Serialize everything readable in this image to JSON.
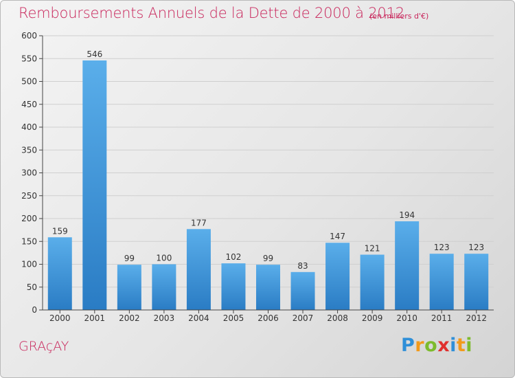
{
  "title": "Remboursements Annuels de la Dette de 2000 à 2012",
  "subtitle": "(en milliers d'€)",
  "town": "GRAçAY",
  "logo": {
    "letters": [
      "P",
      "r",
      "o",
      "x",
      "i",
      "t",
      "i"
    ],
    "colors": [
      "#2f8fd8",
      "#f29a1b",
      "#7dbb2d",
      "#e0302e",
      "#2f8fd8",
      "#f29a1b",
      "#7dbb2d"
    ]
  },
  "colors": {
    "title": "#c8245a",
    "bar_top": "#5aaeea",
    "bar_bottom": "#2a7cc4",
    "gridline": "#cfcfcf",
    "axis": "#444444"
  },
  "chart_data": {
    "type": "bar",
    "categories": [
      "2000",
      "2001",
      "2002",
      "2003",
      "2004",
      "2005",
      "2006",
      "2007",
      "2008",
      "2009",
      "2010",
      "2011",
      "2012"
    ],
    "values": [
      159,
      546,
      99,
      100,
      177,
      102,
      99,
      83,
      147,
      121,
      194,
      123,
      123
    ],
    "ylim": [
      0,
      600
    ],
    "yticks": [
      0,
      50,
      100,
      150,
      200,
      250,
      300,
      350,
      400,
      450,
      500,
      550,
      600
    ],
    "grid": true
  }
}
